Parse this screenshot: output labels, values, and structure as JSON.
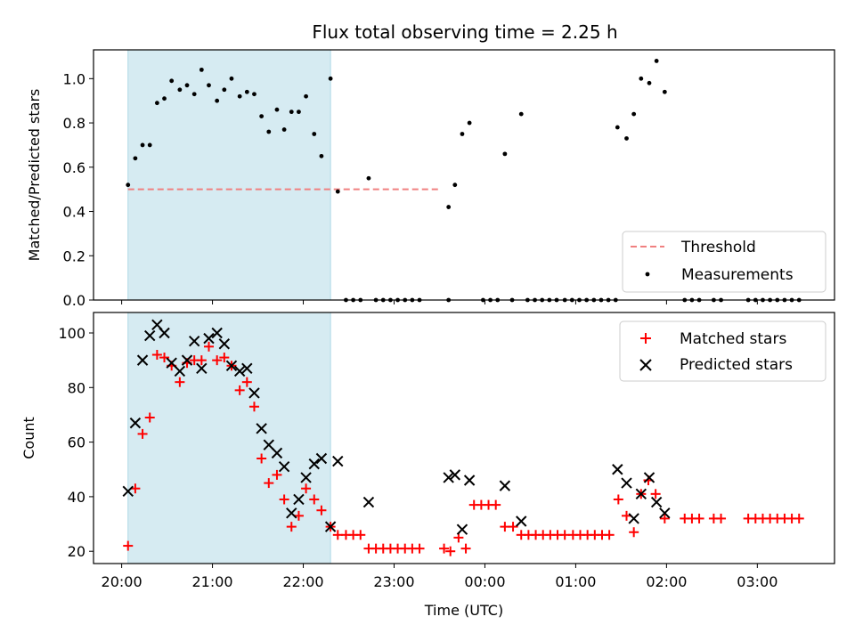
{
  "chart_data": [
    {
      "type": "scatter",
      "title": "Flux total observing time = 2.25 h",
      "xlabel": "",
      "ylabel": "Matched/Predicted stars",
      "ylim": [
        0,
        1.13
      ],
      "yticks": [
        "0.0",
        "0.2",
        "0.4",
        "0.6",
        "0.8",
        "1.0"
      ],
      "highlight_span": {
        "from": 20.07,
        "to": 22.3,
        "color": "#add8e6"
      },
      "threshold": {
        "name": "Threshold",
        "value": 0.5,
        "from": 20.07,
        "to": 23.5,
        "color": "#f08080"
      },
      "series": [
        {
          "name": "Measurements",
          "color": "#000000",
          "x": [
            20.07,
            20.15,
            20.23,
            20.31,
            20.39,
            20.47,
            20.55,
            20.64,
            20.72,
            20.8,
            20.88,
            20.96,
            21.05,
            21.13,
            21.21,
            21.3,
            21.38,
            21.46,
            21.54,
            21.62,
            21.71,
            21.79,
            21.87,
            21.95,
            22.03,
            22.12,
            22.2,
            22.3,
            22.38,
            22.72,
            23.6,
            23.67,
            23.75,
            23.83,
            24.22,
            24.4,
            25.46,
            25.56,
            25.64,
            25.72,
            25.81,
            25.89,
            25.98
          ],
          "y": [
            0.52,
            0.64,
            0.7,
            0.7,
            0.89,
            0.91,
            0.99,
            0.95,
            0.97,
            0.93,
            1.04,
            0.97,
            0.9,
            0.95,
            1.0,
            0.92,
            0.94,
            0.93,
            0.83,
            0.76,
            0.86,
            0.77,
            0.85,
            0.85,
            0.92,
            0.75,
            0.65,
            1.0,
            0.49,
            0.55,
            0.42,
            0.52,
            0.75,
            0.8,
            0.66,
            0.84,
            0.78,
            0.73,
            0.84,
            1.0,
            0.98,
            1.08,
            0.94
          ],
          "zero_x": [
            22.47,
            22.55,
            22.63,
            22.8,
            22.88,
            22.96,
            23.04,
            23.12,
            23.2,
            23.28,
            23.6,
            23.98,
            24.06,
            24.14,
            24.3,
            24.47,
            24.55,
            24.63,
            24.71,
            24.79,
            24.88,
            24.96,
            25.04,
            25.12,
            25.2,
            25.28,
            25.36,
            25.44,
            26.2,
            26.28,
            26.36,
            26.52,
            26.6,
            26.9,
            26.98,
            27.06,
            27.14,
            27.22,
            27.3,
            27.38,
            27.46
          ]
        }
      ]
    },
    {
      "type": "scatter",
      "title": "",
      "xlabel": "Time (UTC)",
      "ylabel": "Count",
      "ylim": [
        15.5,
        107.5
      ],
      "yticks": [
        "20",
        "40",
        "60",
        "80",
        "100"
      ],
      "xlim": [
        19.69,
        27.85
      ],
      "xticks": [
        "20:00",
        "21:00",
        "22:00",
        "23:00",
        "00:00",
        "01:00",
        "02:00",
        "03:00"
      ],
      "highlight_span": {
        "from": 20.07,
        "to": 22.3,
        "color": "#add8e6"
      },
      "series": [
        {
          "name": "Matched stars",
          "color": "#ff0000",
          "x": [
            20.07,
            20.15,
            20.23,
            20.31,
            20.39,
            20.47,
            20.55,
            20.64,
            20.72,
            20.8,
            20.88,
            20.96,
            21.05,
            21.13,
            21.21,
            21.3,
            21.38,
            21.46,
            21.54,
            21.62,
            21.71,
            21.79,
            21.87,
            21.95,
            22.03,
            22.12,
            22.2,
            22.3,
            22.38,
            22.47,
            22.55,
            22.63,
            22.72,
            22.8,
            22.88,
            22.96,
            23.04,
            23.12,
            23.2,
            23.28,
            23.55,
            23.62,
            23.71,
            23.79,
            23.88,
            23.96,
            24.04,
            24.12,
            24.22,
            24.31,
            24.4,
            24.48,
            24.56,
            24.64,
            24.72,
            24.8,
            24.88,
            24.97,
            25.05,
            25.13,
            25.21,
            25.29,
            25.37,
            25.47,
            25.56,
            25.64,
            25.72,
            25.8,
            25.88,
            25.98,
            26.2,
            26.28,
            26.36,
            26.52,
            26.6,
            26.9,
            26.98,
            27.06,
            27.14,
            27.22,
            27.3,
            27.38,
            27.46
          ],
          "y": [
            22,
            43,
            63,
            69,
            92,
            91,
            88,
            82,
            89,
            90,
            90,
            95,
            90,
            91,
            88,
            79,
            82,
            73,
            54,
            45,
            48,
            39,
            29,
            33,
            43,
            39,
            35,
            29,
            26,
            26,
            26,
            26,
            21,
            21,
            21,
            21,
            21,
            21,
            21,
            21,
            21,
            20,
            25,
            21,
            37,
            37,
            37,
            37,
            29,
            29,
            26,
            26,
            26,
            26,
            26,
            26,
            26,
            26,
            26,
            26,
            26,
            26,
            26,
            39,
            33,
            27,
            41,
            46,
            41,
            32,
            32,
            32,
            32,
            32,
            32,
            32,
            32,
            32,
            32,
            32,
            32,
            32,
            32
          ]
        },
        {
          "name": "Predicted stars",
          "color": "#000000",
          "x": [
            20.07,
            20.15,
            20.23,
            20.31,
            20.39,
            20.47,
            20.55,
            20.64,
            20.72,
            20.8,
            20.88,
            20.96,
            21.05,
            21.13,
            21.21,
            21.3,
            21.38,
            21.46,
            21.54,
            21.62,
            21.71,
            21.79,
            21.87,
            21.95,
            22.03,
            22.12,
            22.2,
            22.3,
            22.38,
            22.72,
            23.6,
            23.67,
            23.75,
            23.83,
            24.22,
            24.4,
            25.46,
            25.56,
            25.64,
            25.72,
            25.81,
            25.89,
            25.98
          ],
          "y": [
            42,
            67,
            90,
            99,
            103,
            100,
            89,
            86,
            90,
            97,
            87,
            98,
            100,
            96,
            88,
            86,
            87,
            78,
            65,
            59,
            56,
            51,
            34,
            39,
            47,
            52,
            54,
            29,
            53,
            38,
            47,
            48,
            28,
            46,
            44,
            31,
            50,
            45,
            32,
            41,
            47,
            38,
            34
          ]
        }
      ]
    }
  ]
}
